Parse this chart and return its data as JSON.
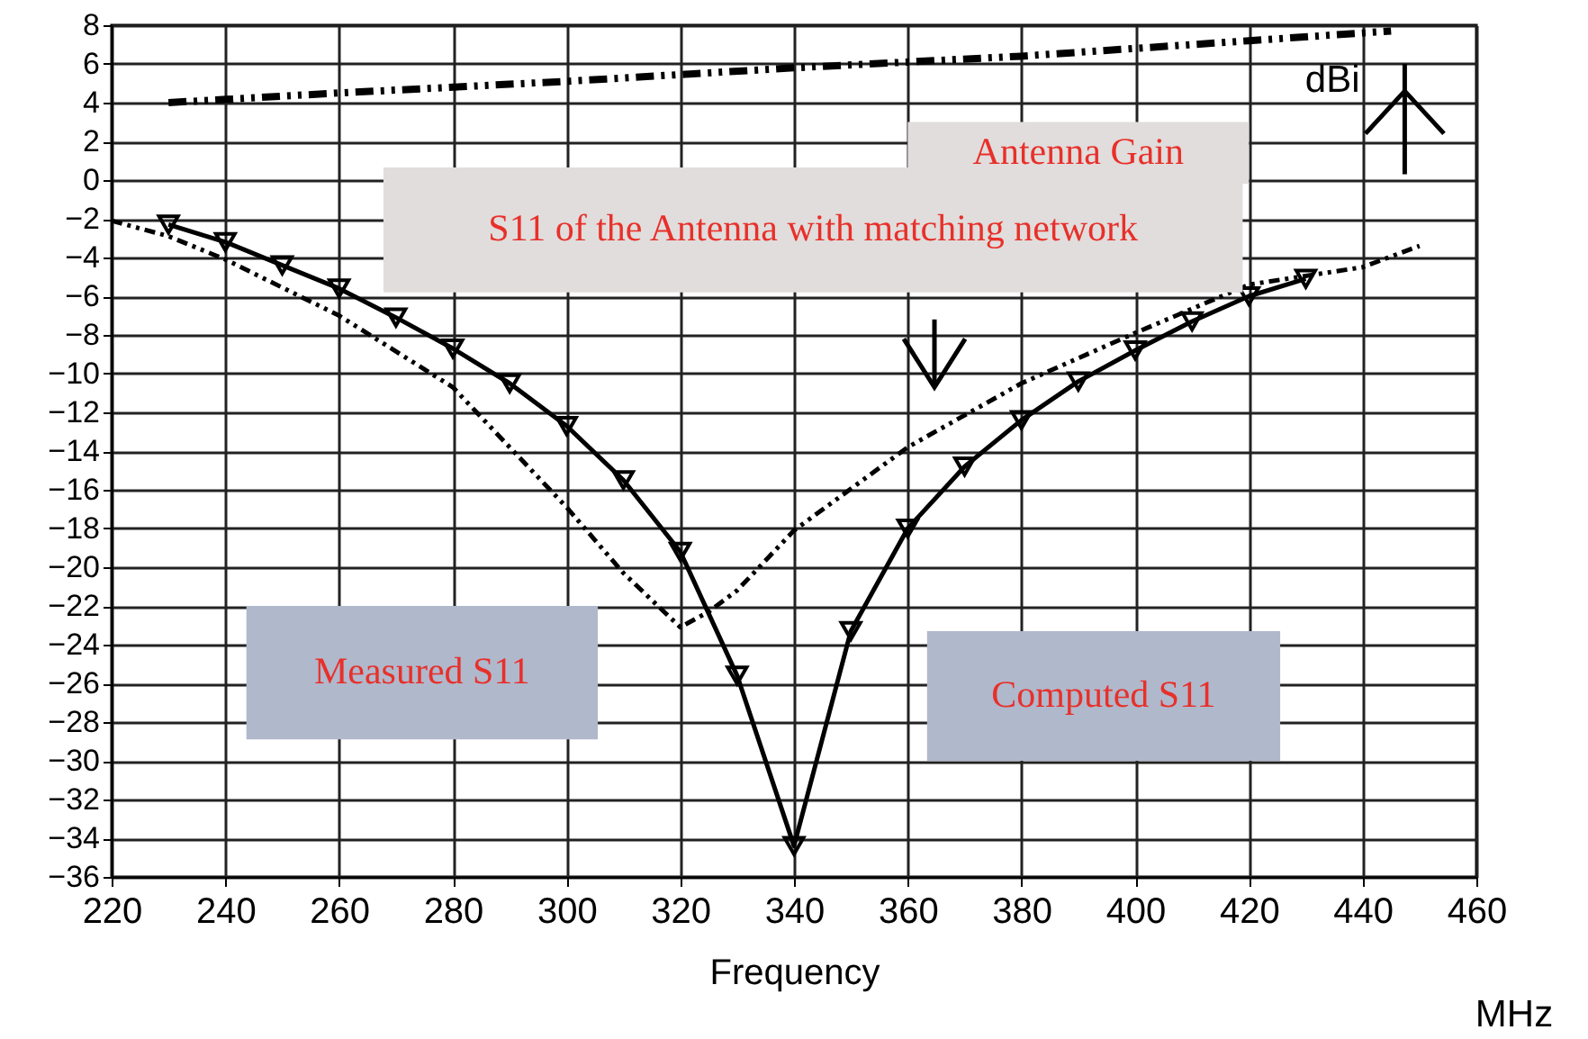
{
  "chart_data": {
    "type": "line",
    "xlabel": "Frequency",
    "ylabel": "dBi",
    "xlim": [
      220,
      460
    ],
    "xticks": [
      220,
      240,
      260,
      280,
      300,
      320,
      340,
      360,
      380,
      400,
      420,
      440,
      460
    ],
    "ylim": [
      -36,
      8
    ],
    "yticks": [
      -36,
      -34,
      -32,
      -30,
      -28,
      -26,
      -24,
      -22,
      -20,
      -18,
      -16,
      -14,
      -12,
      -10,
      -8,
      -6,
      -4,
      -2,
      0,
      2,
      4,
      6,
      8
    ],
    "grid": true,
    "series": [
      {
        "color": "#000000",
        "line_style": "dashed",
        "marker": "none",
        "x": [
          230,
          260,
          300,
          340,
          380,
          420,
          445
        ],
        "values": [
          4.0,
          4.5,
          5.1,
          5.8,
          6.4,
          7.2,
          7.7
        ]
      },
      {
        "color": "#000000",
        "line_style": "dotted",
        "marker": "none",
        "x": [
          220,
          230,
          240,
          260,
          280,
          300,
          310,
          320,
          325,
          330,
          340,
          360,
          380,
          400,
          420,
          440,
          450
        ],
        "values": [
          -2.1,
          -2.9,
          -4.1,
          -7.0,
          -10.7,
          -16.9,
          -20.3,
          -23.1,
          -22.3,
          -21.2,
          -18.1,
          -13.8,
          -10.5,
          -7.9,
          -5.4,
          -4.5,
          -3.4
        ]
      },
      {
        "color": "#000000",
        "line_style": "solid",
        "marker": "triangle",
        "x": [
          230,
          240,
          250,
          260,
          270,
          280,
          290,
          300,
          310,
          320,
          330,
          340,
          350,
          360,
          370,
          380,
          390,
          400,
          410,
          420,
          430
        ],
        "values": [
          -2.3,
          -3.2,
          -4.4,
          -5.6,
          -7.1,
          -8.7,
          -10.5,
          -12.7,
          -15.5,
          -19.2,
          -25.6,
          -34.4,
          -23.3,
          -18.0,
          -14.8,
          -12.4,
          -10.4,
          -8.8,
          -7.3,
          -6.0,
          -5.1
        ]
      }
    ],
    "annotations": [
      "Antenna Gain",
      "S11 of the Antenna with matching network",
      "Measured S11",
      "Computed S11",
      "MHz"
    ]
  }
}
